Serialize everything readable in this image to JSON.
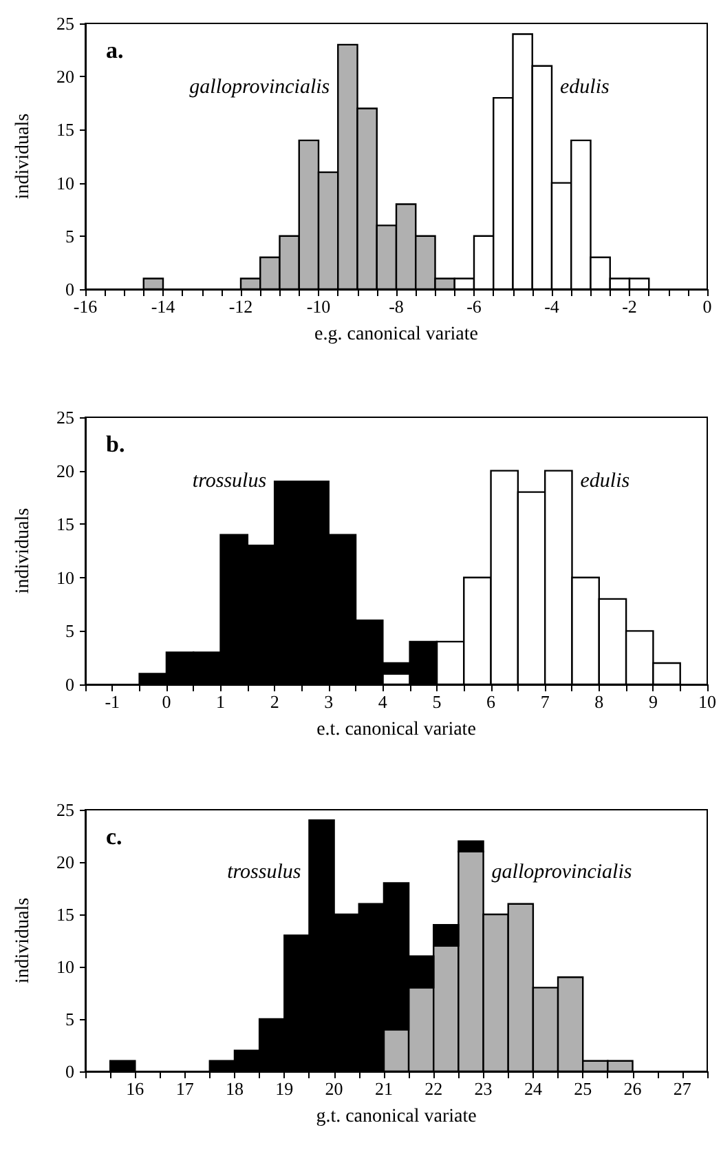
{
  "chart_data": [
    {
      "type": "histogram",
      "title": "a.",
      "xlabel": "e.g. canonical variate",
      "ylabel": "individuals",
      "bins": [
        -14.5,
        -14,
        -13.5,
        -13,
        -12.5,
        -12,
        -11.5,
        -11,
        -10.5,
        -10,
        -9.5,
        -9,
        -8.5,
        -8,
        -7.5,
        -7,
        -6.5,
        -6,
        -5.5,
        -5,
        -4.5,
        -4,
        -3.5,
        -3,
        -2.5,
        -2,
        -1.5
      ],
      "series": [
        {
          "name": "galloprovincialis",
          "color": "#b0b0b0",
          "values": [
            1,
            0,
            0,
            0,
            0,
            1,
            3,
            5,
            14,
            11,
            23,
            17,
            6,
            8,
            5,
            1,
            0,
            0,
            0,
            0,
            0,
            0,
            0,
            0,
            0,
            0
          ]
        },
        {
          "name": "edulis",
          "color": "#ffffff",
          "values": [
            0,
            0,
            0,
            0,
            0,
            0,
            0,
            0,
            0,
            0,
            0,
            0,
            0,
            0,
            0,
            0,
            1,
            5,
            18,
            24,
            21,
            10,
            14,
            3,
            1,
            1
          ]
        }
      ],
      "xlim": [
        -16,
        0
      ],
      "ylim": [
        0,
        25
      ],
      "yticks": [
        0,
        5,
        10,
        15,
        20,
        25
      ],
      "xticks": [
        -16,
        {
          "value": -15.5,
          "label": null
        },
        {
          "value": -15,
          "label": null
        },
        {
          "value": -14.5,
          "label": null
        },
        -14,
        {
          "value": -13.5,
          "label": null
        },
        {
          "value": -13,
          "label": null
        },
        {
          "value": -12.5,
          "label": null
        },
        -12,
        {
          "value": -11.5,
          "label": null
        },
        {
          "value": -11,
          "label": null
        },
        {
          "value": -10.5,
          "label": null
        },
        -10,
        {
          "value": -9.5,
          "label": null
        },
        {
          "value": -9,
          "label": null
        },
        {
          "value": -8.5,
          "label": null
        },
        -8,
        {
          "value": -7.5,
          "label": null
        },
        {
          "value": -7,
          "label": null
        },
        {
          "value": -6.5,
          "label": null
        },
        -6,
        {
          "value": -5.5,
          "label": null
        },
        {
          "value": -5,
          "label": null
        },
        {
          "value": -4.5,
          "label": null
        },
        -4,
        {
          "value": -3.5,
          "label": null
        },
        {
          "value": -3,
          "label": null
        },
        {
          "value": -2.5,
          "label": null
        },
        -2,
        {
          "value": -1.5,
          "label": null
        },
        {
          "value": -1,
          "label": null
        },
        {
          "value": -0.5,
          "label": null
        },
        0
      ]
    },
    {
      "type": "bar",
      "title": "b.",
      "xlabel": "e.t. canonical variate",
      "ylabel": "individuals",
      "stacked": true,
      "x": [
        -0.25,
        0.25,
        0.75,
        1.25,
        1.75,
        2.25,
        2.75,
        3.25,
        3.75,
        4.25,
        4.75,
        5.25,
        5.75,
        6.25,
        6.75,
        7.25,
        7.75,
        8.25,
        8.75,
        9.25
      ],
      "series": [
        {
          "name": "edulis",
          "color": "#ffffff",
          "values": [
            0,
            0,
            0,
            0,
            0,
            0,
            0,
            0,
            0,
            1,
            0,
            4,
            10,
            20,
            18,
            20,
            10,
            8,
            5,
            2
          ]
        },
        {
          "name": "trossulus",
          "color": "#000000",
          "values": [
            1,
            3,
            3,
            14,
            13,
            19,
            19,
            14,
            6,
            1,
            4,
            0,
            0,
            0,
            0,
            0,
            0,
            0,
            0,
            0
          ]
        }
      ],
      "xlim": [
        -1.5,
        10
      ],
      "ylim": [
        0,
        25
      ],
      "yticks": [
        0,
        5,
        10,
        15,
        20,
        25
      ],
      "xticks": [
        {
          "value": -1.5,
          "label": null
        },
        -1,
        {
          "value": -0.5,
          "label": null
        },
        0,
        {
          "value": 0.5,
          "label": null
        },
        1,
        {
          "value": 1.5,
          "label": null
        },
        2,
        {
          "value": 2.5,
          "label": null
        },
        3,
        {
          "value": 3.5,
          "label": null
        },
        4,
        {
          "value": 4.5,
          "label": null
        },
        5,
        {
          "value": 5.5,
          "label": null
        },
        6,
        {
          "value": 6.5,
          "label": null
        },
        7,
        {
          "value": 7.5,
          "label": null
        },
        8,
        {
          "value": 8.5,
          "label": null
        },
        9,
        {
          "value": 9.5,
          "label": null
        },
        10
      ]
    },
    {
      "type": "bar",
      "title": "c.",
      "xlabel": "g.t. canonical variate",
      "ylabel": "individuals",
      "stacked": true,
      "x": [
        15.75,
        16.25,
        16.75,
        17.25,
        17.75,
        18.25,
        18.75,
        19.25,
        19.75,
        20.25,
        20.75,
        21.25,
        21.75,
        22.25,
        22.75,
        23.25,
        23.75,
        24.25,
        24.75,
        25.25,
        25.75
      ],
      "series": [
        {
          "name": "galloprovincialis",
          "color": "#b0b0b0",
          "values": [
            0,
            0,
            0,
            0,
            0,
            0,
            0,
            0,
            0,
            0,
            0,
            4,
            8,
            12,
            21,
            15,
            16,
            8,
            9,
            1,
            1
          ]
        },
        {
          "name": "trossulus",
          "color": "#000000",
          "values": [
            1,
            0,
            0,
            0,
            1,
            2,
            5,
            13,
            24,
            15,
            16,
            14,
            3,
            2,
            1,
            0,
            0,
            0,
            0,
            0,
            0
          ]
        }
      ],
      "xlim": [
        15,
        27.5
      ],
      "ylim": [
        0,
        25
      ],
      "yticks": [
        0,
        5,
        10,
        15,
        20,
        25
      ],
      "xticks": [
        {
          "value": 15,
          "label": null
        },
        {
          "value": 15.5,
          "label": null
        },
        16,
        {
          "value": 16.5,
          "label": null
        },
        17,
        {
          "value": 17.5,
          "label": null
        },
        18,
        {
          "value": 18.5,
          "label": null
        },
        19,
        {
          "value": 19.5,
          "label": null
        },
        20,
        {
          "value": 20.5,
          "label": null
        },
        21,
        {
          "value": 21.5,
          "label": null
        },
        22,
        {
          "value": 22.5,
          "label": null
        },
        23,
        {
          "value": 23.5,
          "label": null
        },
        24,
        {
          "value": 24.5,
          "label": null
        },
        25,
        {
          "value": 25.5,
          "label": null
        },
        26,
        {
          "value": 26.5,
          "label": null
        },
        27,
        {
          "value": 27.5,
          "label": null
        }
      ]
    }
  ]
}
